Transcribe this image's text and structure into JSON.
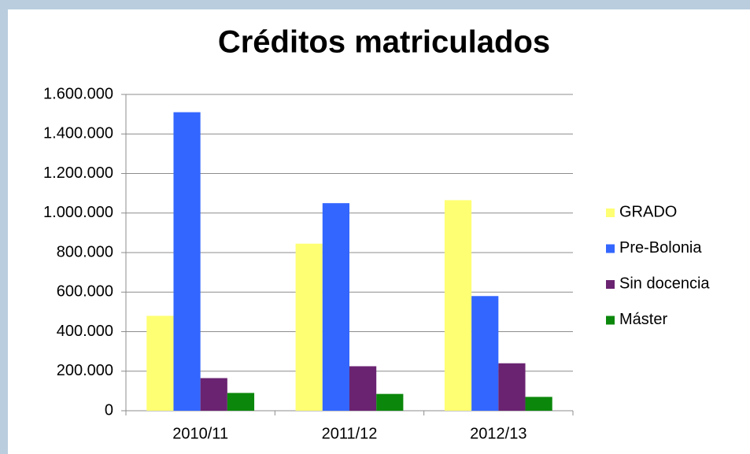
{
  "chart_data": {
    "type": "bar",
    "title": "Créditos matriculados",
    "categories": [
      "2010/11",
      "2011/12",
      "2012/13"
    ],
    "series": [
      {
        "name": "GRADO",
        "color": "#ffff73",
        "values": [
          480000,
          845000,
          1065000
        ]
      },
      {
        "name": "Pre-Bolonia",
        "color": "#3366ff",
        "values": [
          1510000,
          1050000,
          580000
        ]
      },
      {
        "name": "Sin docencia",
        "color": "#6a2371",
        "values": [
          165000,
          225000,
          240000
        ]
      },
      {
        "name": "Máster",
        "color": "#0b870b",
        "values": [
          90000,
          85000,
          70000
        ]
      }
    ],
    "ylim": [
      0,
      1600000
    ],
    "yticks": [
      0,
      {
        "value": 200000,
        "label": "200.000"
      },
      {
        "value": 400000,
        "label": "400.000"
      },
      {
        "value": 600000,
        "label": "600.000"
      },
      {
        "value": 800000,
        "label": "800.000"
      },
      {
        "value": 1000000,
        "label": "1.000.000"
      },
      {
        "value": 1200000,
        "label": "1.200.000"
      },
      {
        "value": 1400000,
        "label": "1.400.000"
      },
      {
        "value": 1600000,
        "label": "1.600.000"
      }
    ],
    "grid": true,
    "legend": "right"
  }
}
